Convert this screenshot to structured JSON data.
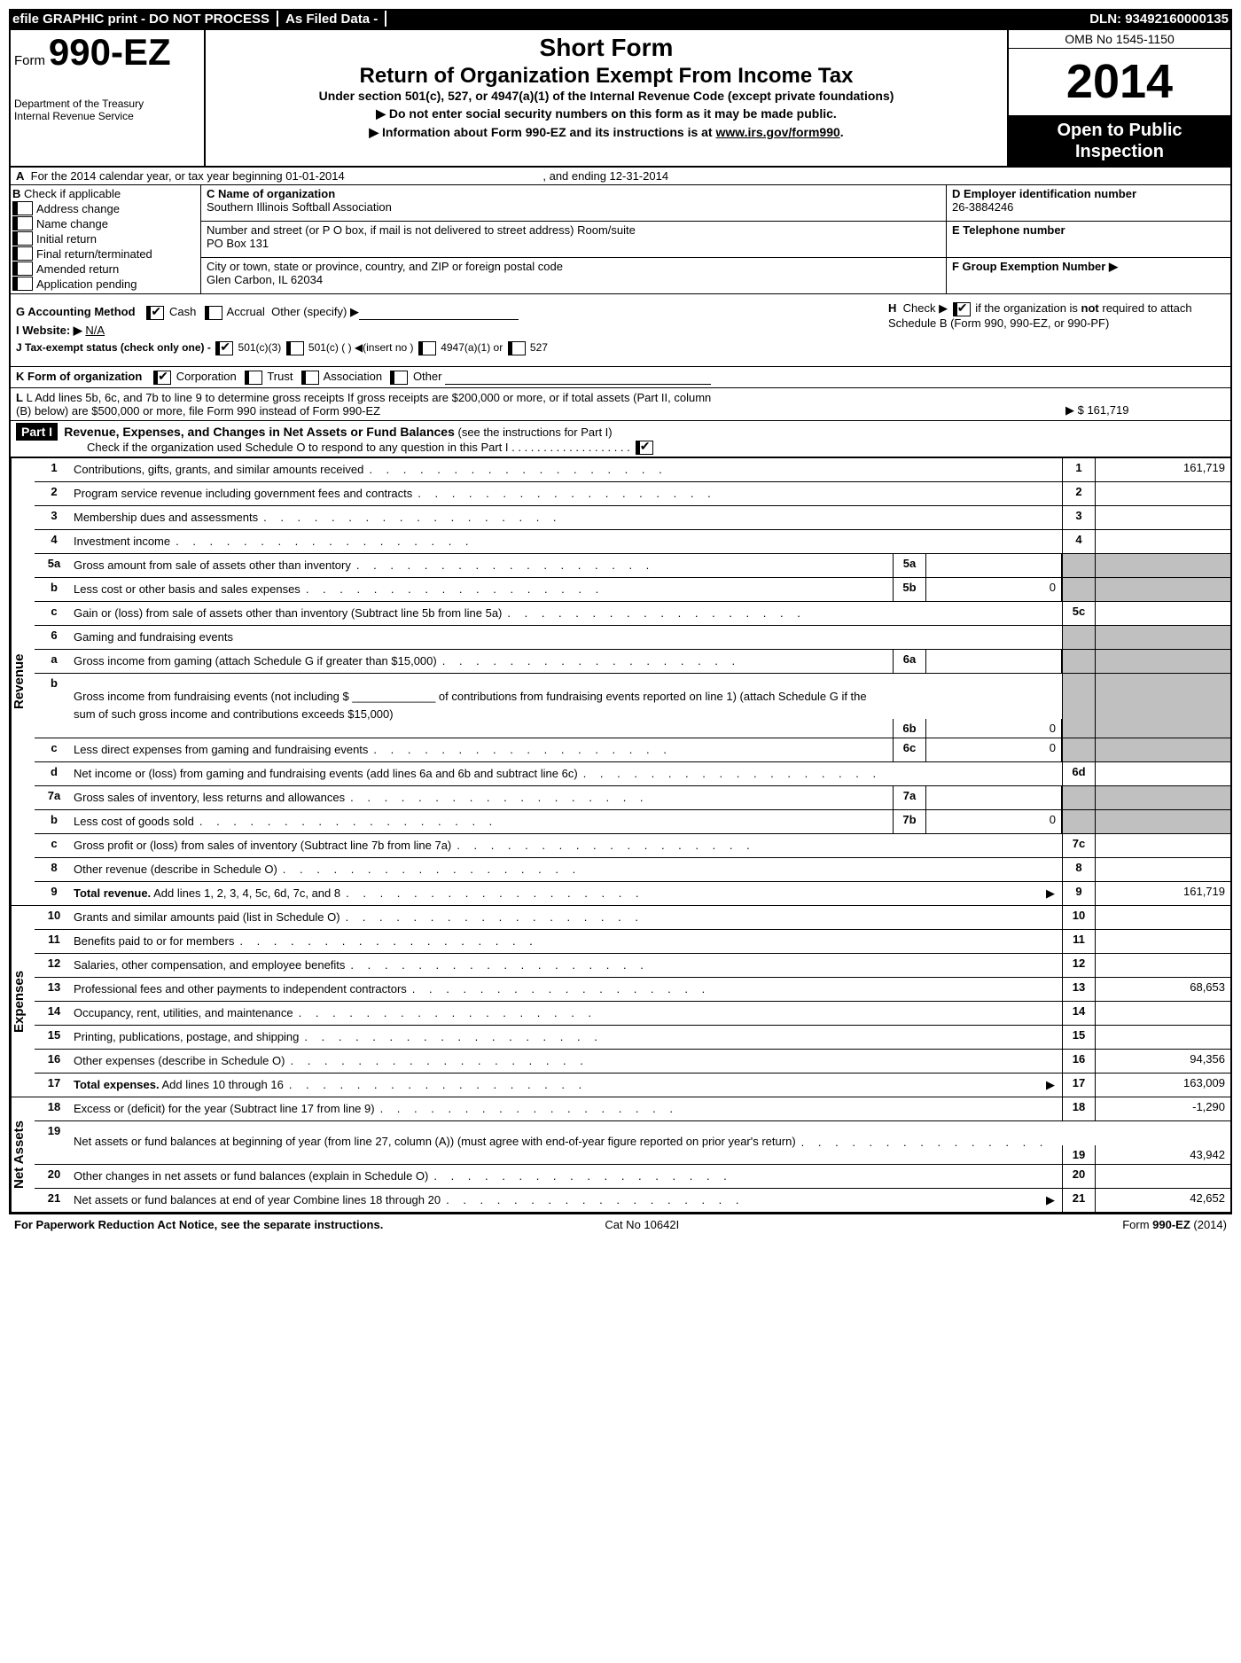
{
  "topbar": {
    "left": "efile GRAPHIC print - DO NOT PROCESS",
    "mid": "As Filed Data -",
    "right": "DLN: 93492160000135"
  },
  "header": {
    "form_prefix": "Form",
    "form_number": "990-EZ",
    "dept1": "Department of the Treasury",
    "dept2": "Internal Revenue Service",
    "short_form": "Short Form",
    "return_title": "Return of Organization Exempt From Income Tax",
    "sub_title": "Under section 501(c), 527, or 4947(a)(1) of the Internal Revenue Code (except private foundations)",
    "info1": "▶ Do not enter social security numbers on this form as it may be made public.",
    "info2_pre": "▶ Information about Form 990-EZ and its instructions is at ",
    "info2_link": "www.irs.gov/form990",
    "info2_post": ".",
    "omb": "OMB No 1545-1150",
    "year": "2014",
    "open": "Open to Public Inspection"
  },
  "row_a": {
    "label_a": "A",
    "text1": "For the 2014 calendar year, or tax year beginning 01-01-2014",
    "text2": ", and ending 12-31-2014"
  },
  "col_b": {
    "label": "B",
    "intro": "Check if applicable",
    "items": [
      "Address change",
      "Name change",
      "Initial return",
      "Final return/terminated",
      "Amended return",
      "Application pending"
    ]
  },
  "col_c": {
    "c_label": "C Name of organization",
    "c_val": "Southern Illinois Softball Association",
    "addr_label": "Number and street (or P O box, if mail is not delivered to street address) Room/suite",
    "addr_val": "PO Box 131",
    "city_label": "City or town, state or province, country, and ZIP or foreign postal code",
    "city_val": "Glen Carbon, IL  62034"
  },
  "col_de": {
    "d_label": "D Employer identification number",
    "d_val": "26-3884246",
    "e_label": "E Telephone number",
    "e_val": "",
    "f_label": "F Group Exemption Number  ▶",
    "f_val": ""
  },
  "mid": {
    "g": "G Accounting Method",
    "g_cash": "Cash",
    "g_accrual": "Accrual",
    "g_other": "Other (specify) ▶",
    "h_text": "H  Check ▶       if the organization is not required to attach Schedule B (Form 990, 990-EZ, or 990-PF)",
    "i": "I Website: ▶",
    "i_val": "N/A",
    "j": "J Tax-exempt status (check only one) -",
    "j1": "501(c)(3)",
    "j2": "501(c) (   ) ◀(insert no )",
    "j3": "4947(a)(1) or",
    "j4": "527",
    "k": "K Form of organization",
    "k1": "Corporation",
    "k2": "Trust",
    "k3": "Association",
    "k4": "Other",
    "l1": "L Add lines 5b, 6c, and 7b to line 9 to determine gross receipts  If gross receipts are $200,000 or more, or if total assets (Part II, column",
    "l2": "(B) below) are $500,000 or more, file Form 990 instead of Form 990-EZ",
    "l_val": "▶ $ 161,719"
  },
  "part1": {
    "hdr": "Part I",
    "title": "Revenue, Expenses, and Changes in Net Assets or Fund Balances",
    "title_suffix": "(see the instructions for Part I)",
    "sub": "Check if the organization used Schedule O to respond to any question in this Part I  .  .  .  .  .  .  .  .  .  .  .  .  .  .  .  .  .  .  ."
  },
  "sections": {
    "revenue": "Revenue",
    "expenses": "Expenses",
    "netassets": "Net Assets"
  },
  "lines": {
    "1": {
      "n": "1",
      "d": "Contributions, gifts, grants, and similar amounts received",
      "r": "1",
      "v": "161,719"
    },
    "2": {
      "n": "2",
      "d": "Program service revenue including government fees and contracts",
      "r": "2",
      "v": ""
    },
    "3": {
      "n": "3",
      "d": "Membership dues and assessments",
      "r": "3",
      "v": ""
    },
    "4": {
      "n": "4",
      "d": "Investment income",
      "r": "4",
      "v": ""
    },
    "5a": {
      "n": "5a",
      "d": "Gross amount from sale of assets other than inventory",
      "mn": "5a",
      "mv": ""
    },
    "5b": {
      "n": "b",
      "d": "Less  cost or other basis and sales expenses",
      "mn": "5b",
      "mv": "0"
    },
    "5c": {
      "n": "c",
      "d": "Gain or (loss) from sale of assets other than inventory (Subtract line 5b from line 5a)",
      "r": "5c",
      "v": ""
    },
    "6": {
      "n": "6",
      "d": "Gaming and fundraising events"
    },
    "6a": {
      "n": "a",
      "d": "Gross income from gaming (attach Schedule G if greater than $15,000)",
      "mn": "6a",
      "mv": ""
    },
    "6b": {
      "n": "b",
      "d": "Gross income from fundraising events (not including $ _____________ of contributions from fundraising events reported on line 1) (attach Schedule G if the sum of such gross income and contributions exceeds $15,000)",
      "mn": "6b",
      "mv": "0"
    },
    "6c": {
      "n": "c",
      "d": "Less  direct expenses from gaming and fundraising events",
      "mn": "6c",
      "mv": "0"
    },
    "6d": {
      "n": "d",
      "d": "Net income or (loss) from gaming and fundraising events (add lines 6a and 6b and subtract line 6c)",
      "r": "6d",
      "v": ""
    },
    "7a": {
      "n": "7a",
      "d": "Gross sales of inventory, less returns and allowances",
      "mn": "7a",
      "mv": ""
    },
    "7b": {
      "n": "b",
      "d": "Less  cost of goods sold",
      "mn": "7b",
      "mv": "0"
    },
    "7c": {
      "n": "c",
      "d": "Gross profit or (loss) from sales of inventory (Subtract line 7b from line 7a)",
      "r": "7c",
      "v": ""
    },
    "8": {
      "n": "8",
      "d": "Other revenue (describe in Schedule O)",
      "r": "8",
      "v": ""
    },
    "9": {
      "n": "9",
      "d": "Total revenue. Add lines 1, 2, 3, 4, 5c, 6d, 7c, and 8",
      "r": "9",
      "v": "161,719",
      "bold": true,
      "arrow": true
    },
    "10": {
      "n": "10",
      "d": "Grants and similar amounts paid (list in Schedule O)",
      "r": "10",
      "v": ""
    },
    "11": {
      "n": "11",
      "d": "Benefits paid to or for members",
      "r": "11",
      "v": ""
    },
    "12": {
      "n": "12",
      "d": "Salaries, other compensation, and employee benefits",
      "r": "12",
      "v": ""
    },
    "13": {
      "n": "13",
      "d": "Professional fees and other payments to independent contractors",
      "r": "13",
      "v": "68,653"
    },
    "14": {
      "n": "14",
      "d": "Occupancy, rent, utilities, and maintenance",
      "r": "14",
      "v": ""
    },
    "15": {
      "n": "15",
      "d": "Printing, publications, postage, and shipping",
      "r": "15",
      "v": ""
    },
    "16": {
      "n": "16",
      "d": "Other expenses (describe in Schedule O)",
      "r": "16",
      "v": "94,356"
    },
    "17": {
      "n": "17",
      "d": "Total expenses. Add lines 10 through 16",
      "r": "17",
      "v": "163,009",
      "bold": true,
      "arrow": true
    },
    "18": {
      "n": "18",
      "d": "Excess or (deficit) for the year (Subtract line 17 from line 9)",
      "r": "18",
      "v": "-1,290"
    },
    "19": {
      "n": "19",
      "d": "Net assets or fund balances at beginning of year (from line 27, column (A)) (must agree with end-of-year figure reported on prior year's return)",
      "r": "19",
      "v": "43,942"
    },
    "20": {
      "n": "20",
      "d": "Other changes in net assets or fund balances (explain in Schedule O)",
      "r": "20",
      "v": ""
    },
    "21": {
      "n": "21",
      "d": "Net assets or fund balances at end of year Combine lines 18 through 20",
      "r": "21",
      "v": "42,652",
      "arrow": true
    }
  },
  "footer": {
    "left": "For Paperwork Reduction Act Notice, see the separate instructions.",
    "mid": "Cat No 10642I",
    "right": "Form 990-EZ (2014)"
  }
}
